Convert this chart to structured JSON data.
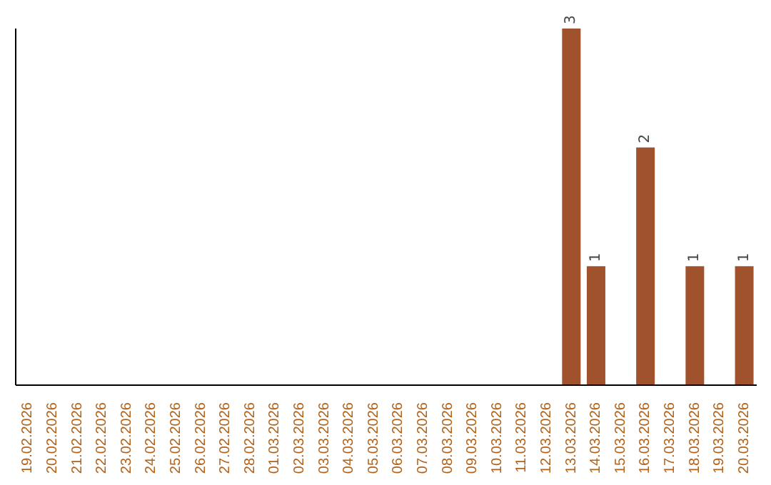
{
  "chart_data": {
    "type": "bar",
    "categories": [
      "19.02.2026",
      "20.02.2026",
      "21.02.2026",
      "22.02.2026",
      "23.02.2026",
      "24.02.2026",
      "25.02.2026",
      "26.02.2026",
      "27.02.2026",
      "28.02.2026",
      "01.03.2026",
      "02.03.2026",
      "03.03.2026",
      "04.03.2026",
      "05.03.2026",
      "06.03.2026",
      "07.03.2026",
      "08.03.2026",
      "09.03.2026",
      "10.03.2026",
      "11.03.2026",
      "12.03.2026",
      "13.03.2026",
      "14.03.2026",
      "15.03.2026",
      "16.03.2026",
      "17.03.2026",
      "18.03.2026",
      "19.03.2026",
      "20.03.2026"
    ],
    "values": [
      null,
      null,
      null,
      null,
      null,
      null,
      null,
      null,
      null,
      null,
      null,
      null,
      null,
      null,
      null,
      null,
      null,
      null,
      null,
      null,
      null,
      null,
      3,
      1,
      null,
      2,
      null,
      1,
      null,
      1
    ],
    "color": "#a0522d",
    "data_labels": true
  }
}
